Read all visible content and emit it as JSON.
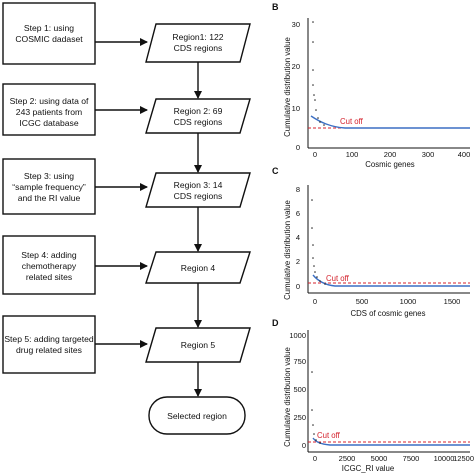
{
  "steps": [
    {
      "line1": "Step 1: using",
      "line2": "COSMIC dadaset",
      "line3": ""
    },
    {
      "line1": "Step 2: using data of",
      "line2": "243 patients from",
      "line3": "ICGC database"
    },
    {
      "line1": "Step 3: using",
      "line2": "“sample frequency”",
      "line3": "and the RI value"
    },
    {
      "line1": "Step 4: adding",
      "line2": "chemotherapy",
      "line3": "related sites"
    },
    {
      "line1": "Step 5: adding targeted",
      "line2": "drug related sites",
      "line3": ""
    }
  ],
  "regions": [
    {
      "line1": "Region1: 122",
      "line2": "CDS regions"
    },
    {
      "line1": "Region 2: 69",
      "line2": "CDS regions"
    },
    {
      "line1": "Region 3: 14",
      "line2": "CDS regions"
    },
    {
      "line1": "Region 4",
      "line2": ""
    },
    {
      "line1": "Region 5",
      "line2": ""
    }
  ],
  "final": {
    "label": "Selected region"
  },
  "panels": [
    {
      "letter": "B",
      "ylabel": "Cumulative distribution value",
      "xlabel": "Cosmic genes",
      "cutoff_label": "Cut off",
      "yticks": [
        "0",
        "10",
        "20",
        "30"
      ],
      "xticks": [
        "0",
        "100",
        "200",
        "300",
        "400"
      ]
    },
    {
      "letter": "C",
      "ylabel": "Cumulative distribution value",
      "xlabel": "CDS of cosmic genes",
      "cutoff_label": "Cut off",
      "yticks": [
        "0",
        "2",
        "4",
        "6",
        "8"
      ],
      "xticks": [
        "0",
        "500",
        "1000",
        "1500"
      ]
    },
    {
      "letter": "D",
      "ylabel": "Cumulative distribution value",
      "xlabel": "ICGC_RI value",
      "cutoff_label": "Cut off",
      "yticks": [
        "0",
        "250",
        "500",
        "750",
        "1000"
      ],
      "xticks": [
        "0",
        "2500",
        "5000",
        "7500",
        "10000",
        "12500"
      ]
    }
  ],
  "colors": {
    "cutoff": "#d4212c",
    "curve": "#3b6fc4",
    "points": "#222222"
  }
}
